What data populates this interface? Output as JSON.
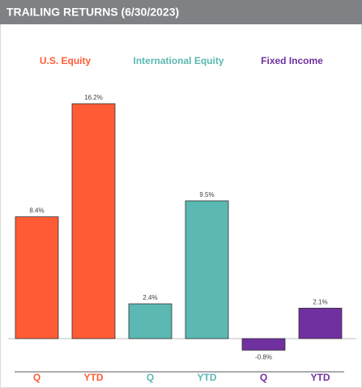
{
  "chart_data": {
    "type": "bar",
    "title": "TRAILING RETURNS (6/30/2023)",
    "groups": [
      {
        "name": "U.S. Equity",
        "color": "#ff5c35",
        "categories": [
          "Q",
          "YTD"
        ],
        "values": [
          8.4,
          16.2
        ],
        "value_labels": [
          "8.4%",
          "16.2%"
        ]
      },
      {
        "name": "International Equity",
        "color": "#5bb8b2",
        "categories": [
          "Q",
          "YTD"
        ],
        "values": [
          2.4,
          9.5
        ],
        "value_labels": [
          "2.4%",
          "9.5%"
        ]
      },
      {
        "name": "Fixed Income",
        "color": "#7030a0",
        "categories": [
          "Q",
          "YTD"
        ],
        "values": [
          -0.8,
          2.1
        ],
        "value_labels": [
          "-0.8%",
          "2.1%"
        ]
      }
    ]
  }
}
